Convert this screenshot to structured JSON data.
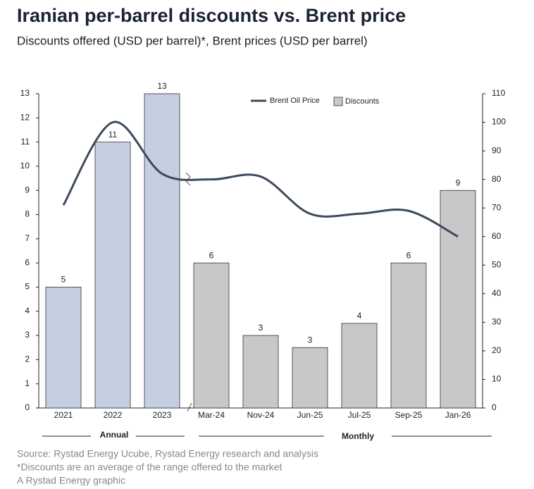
{
  "chart_data": {
    "type": "bar",
    "title": "Iranian per-barrel discounts vs. Brent price",
    "subtitle": "Discounts offered (USD per barrel)*, Brent prices (USD per barrel)",
    "notes": [
      "Source: Rystad Energy Ucube, Rystad Energy research and analysis",
      "*Discounts are an average of the range offered to the market",
      "A Rystad Energy graphic"
    ],
    "groups": [
      "Annual",
      "Monthly"
    ],
    "categories": [
      "2021",
      "2022",
      "2023",
      "Mar-24",
      "Nov-24",
      "Jun-25",
      "Jul-25",
      "Sep-25",
      "Jan-26"
    ],
    "series": [
      {
        "name": "Discounts",
        "type": "bar",
        "color": "#c8c8c8",
        "annual_color": "#c5cfe2",
        "values": [
          5,
          11,
          13,
          6,
          3,
          2.5,
          3.5,
          6,
          9
        ],
        "value_labels": [
          "5",
          "11",
          "13",
          "6",
          "3",
          "3",
          "4",
          "6",
          "9"
        ]
      },
      {
        "name": "Brent Oil Price",
        "type": "line",
        "axis": "y2",
        "color": "#3d4b5c",
        "values": [
          71,
          100,
          82,
          80,
          81,
          68,
          68,
          69,
          60
        ]
      }
    ],
    "ylim": [
      0,
      13
    ],
    "yticks": [
      0,
      1,
      2,
      3,
      4,
      5,
      6,
      7,
      8,
      9,
      10,
      11,
      12,
      13
    ],
    "y2lim": [
      0,
      110
    ],
    "y2ticks": [
      0,
      10,
      20,
      30,
      40,
      50,
      60,
      70,
      80,
      90,
      100,
      110
    ]
  }
}
